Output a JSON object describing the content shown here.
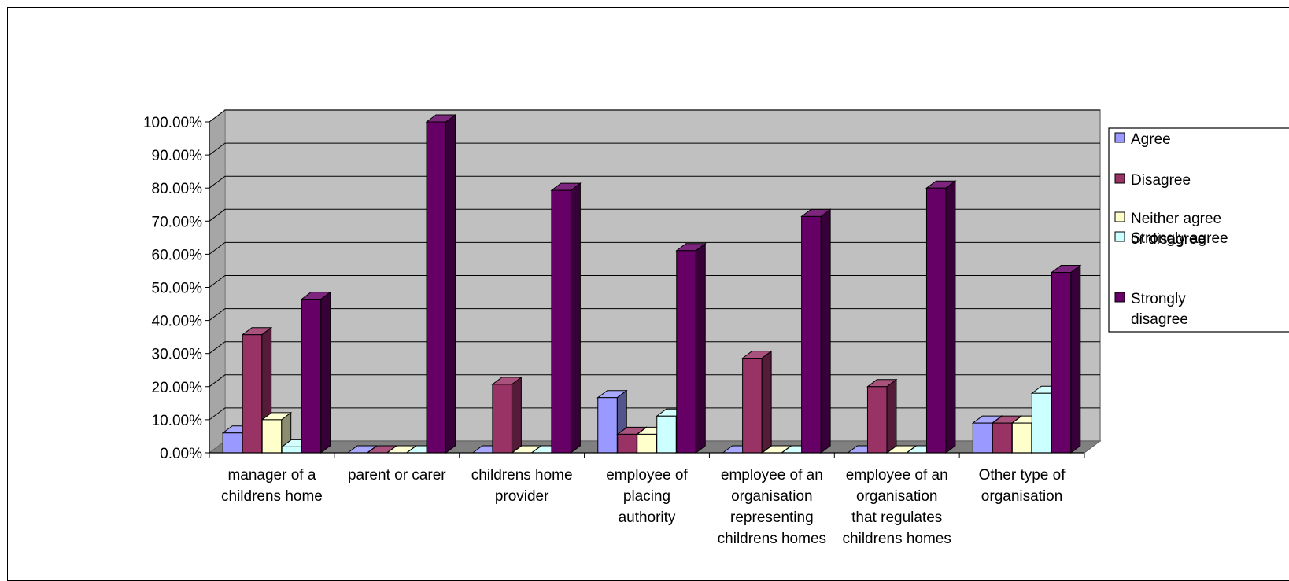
{
  "chart_data": {
    "type": "bar",
    "title": "",
    "xlabel": "",
    "ylabel": "",
    "ylim": [
      0,
      1
    ],
    "yticks": [
      "0.00%",
      "10.00%",
      "20.00%",
      "30.00%",
      "40.00%",
      "50.00%",
      "60.00%",
      "70.00%",
      "80.00%",
      "90.00%",
      "100.00%"
    ],
    "categories": [
      [
        "manager of a",
        "childrens home"
      ],
      [
        "parent or carer"
      ],
      [
        "childrens home",
        "provider"
      ],
      [
        "employee of",
        "placing",
        "authority"
      ],
      [
        "employee of an",
        "organisation",
        "representing",
        "childrens homes"
      ],
      [
        "employee of an",
        "organisation",
        "that regulates",
        "childrens homes"
      ],
      [
        "Other type of",
        "organisation"
      ]
    ],
    "series": [
      {
        "name": "Agree",
        "legend_lines": [
          "Agree"
        ],
        "color": "#9999ff",
        "values": [
          0.06,
          0.0,
          0.0,
          0.167,
          0.0,
          0.0,
          0.09
        ]
      },
      {
        "name": "Disagree",
        "legend_lines": [
          "Disagree"
        ],
        "color": "#993366",
        "values": [
          0.357,
          0.0,
          0.207,
          0.056,
          0.286,
          0.2,
          0.09
        ]
      },
      {
        "name": "Neither agree or disagree",
        "legend_lines": [
          "Neither agree",
          "or disagree"
        ],
        "color": "#ffffcc",
        "values": [
          0.1,
          0.0,
          0.0,
          0.056,
          0.0,
          0.0,
          0.09
        ]
      },
      {
        "name": "Strongly agree",
        "legend_lines": [
          "Strongly agree"
        ],
        "color": "#ccffff",
        "values": [
          0.018,
          0.0,
          0.0,
          0.111,
          0.0,
          0.0,
          0.18
        ]
      },
      {
        "name": "Strongly disagree",
        "legend_lines": [
          "Strongly",
          "disagree"
        ],
        "color": "#660066",
        "values": [
          0.464,
          1.0,
          0.793,
          0.611,
          0.714,
          0.8,
          0.545
        ]
      }
    ],
    "grid": true,
    "legend": "right"
  }
}
